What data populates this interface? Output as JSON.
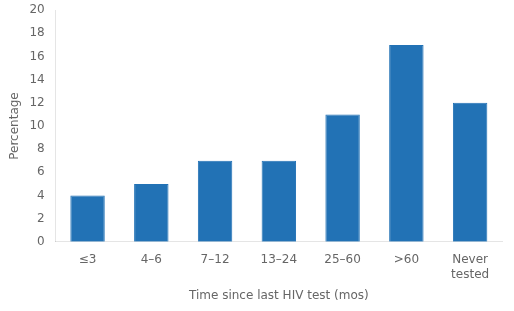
{
  "chart_data": {
    "type": "bar",
    "categories": [
      "≤3",
      "4–6",
      "7–12",
      "13–24",
      "25–60",
      ">60",
      "Never\ntested"
    ],
    "values": [
      4,
      5,
      7,
      7,
      11,
      17,
      12
    ],
    "color": "#2272b5",
    "xlabel": "Time since last HIV test (mos)",
    "ylabel": "Percentage",
    "ylim": [
      0,
      20
    ],
    "yticks": [
      0,
      2,
      4,
      6,
      8,
      10,
      12,
      14,
      16,
      18,
      20
    ],
    "grid": false
  }
}
